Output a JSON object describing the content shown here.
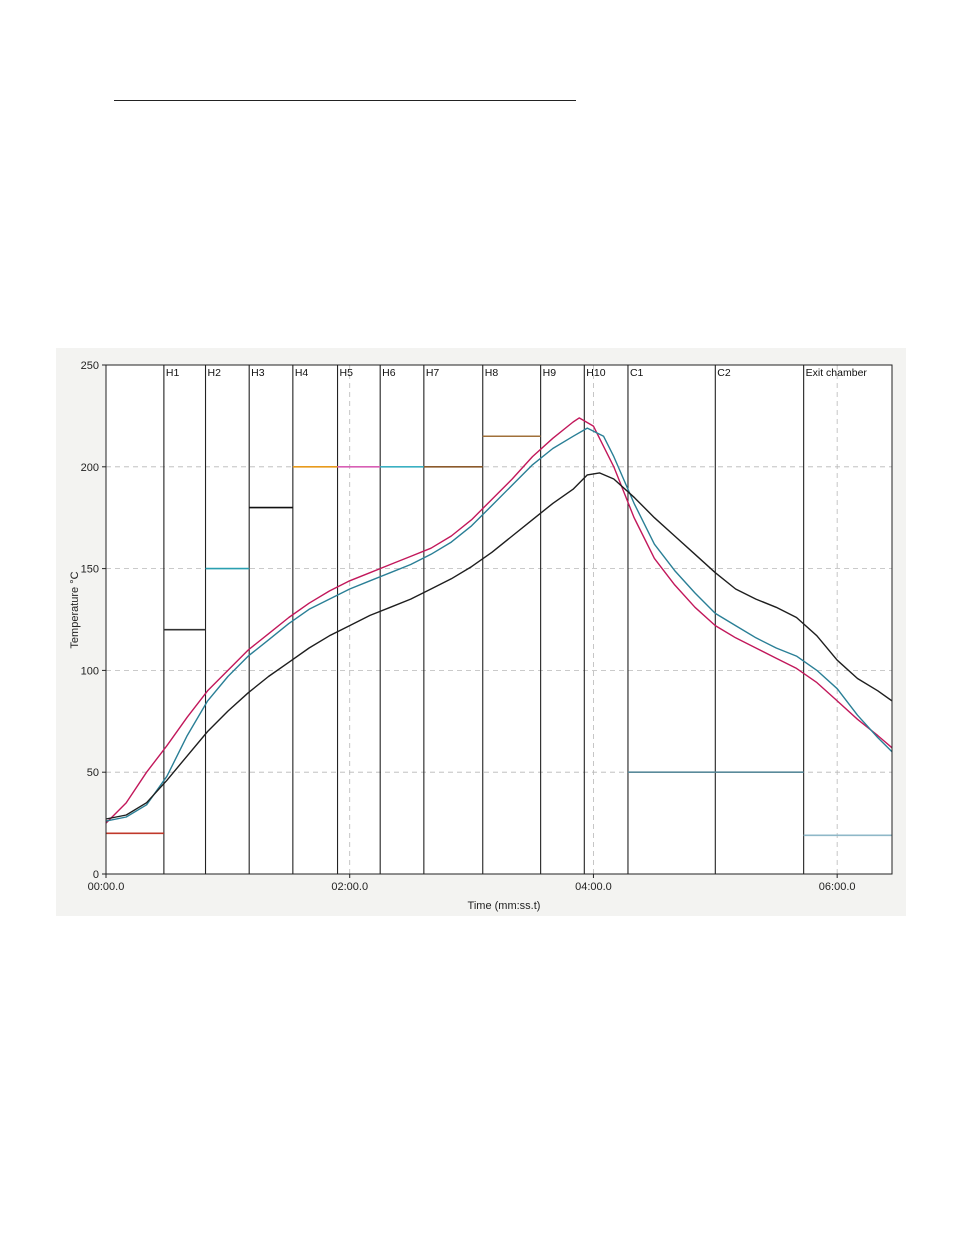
{
  "chart_data": {
    "type": "line",
    "title": "",
    "xlabel": "Time (mm:ss.t)",
    "ylabel": "Temperature °C",
    "xlim": [
      0,
      387
    ],
    "ylim": [
      0,
      250
    ],
    "x_ticks": [
      {
        "value": 0,
        "label": "00:00.0"
      },
      {
        "value": 120,
        "label": "02:00.0"
      },
      {
        "value": 240,
        "label": "04:00.0"
      },
      {
        "value": 360,
        "label": "06:00.0"
      }
    ],
    "y_ticks": [
      0,
      50,
      100,
      150,
      200,
      250
    ],
    "grid": true,
    "zones": [
      {
        "label": "",
        "start": 0,
        "end": 28.5,
        "setpoint": 20,
        "color": "#c0392b"
      },
      {
        "label": "H1",
        "start": 28.5,
        "end": 49,
        "setpoint": 120,
        "color": "#333333"
      },
      {
        "label": "H2",
        "start": 49,
        "end": 70.5,
        "setpoint": 150,
        "color": "#2a9fb0"
      },
      {
        "label": "H3",
        "start": 70.5,
        "end": 92,
        "setpoint": 180,
        "color": "#111111"
      },
      {
        "label": "H4",
        "start": 92,
        "end": 114,
        "setpoint": 200,
        "color": "#e89a1c"
      },
      {
        "label": "H5",
        "start": 114,
        "end": 135,
        "setpoint": 200,
        "color": "#d85fb5"
      },
      {
        "label": "H6",
        "start": 135,
        "end": 156.5,
        "setpoint": 200,
        "color": "#3bb0c2"
      },
      {
        "label": "H7",
        "start": 156.5,
        "end": 185.5,
        "setpoint": 200,
        "color": "#8b5a2b"
      },
      {
        "label": "H8",
        "start": 185.5,
        "end": 214,
        "setpoint": 215,
        "color": "#a0703a"
      },
      {
        "label": "H9",
        "start": 214,
        "end": 235.5,
        "setpoint": null,
        "color": "#333333"
      },
      {
        "label": "H10",
        "start": 235.5,
        "end": 257,
        "setpoint": null,
        "color": "#333333"
      },
      {
        "label": "C1",
        "start": 257,
        "end": 300,
        "setpoint": 50,
        "color": "#5a8a9a"
      },
      {
        "label": "C2",
        "start": 300,
        "end": 343.5,
        "setpoint": 50,
        "color": "#5a8a9a"
      },
      {
        "label": "Exit chamber",
        "start": 343.5,
        "end": 387,
        "setpoint": 19,
        "color": "#8fb8c8"
      }
    ],
    "series": [
      {
        "color": "#c2185b",
        "x": [
          0,
          10,
          20,
          30,
          40,
          50,
          60,
          70,
          80,
          90,
          100,
          110,
          120,
          130,
          140,
          150,
          160,
          170,
          180,
          190,
          200,
          210,
          220,
          230,
          233,
          240,
          250,
          260,
          270,
          280,
          290,
          300,
          310,
          320,
          330,
          340,
          350,
          360,
          370,
          380,
          387
        ],
        "y": [
          25,
          35,
          50,
          63,
          77,
          90,
          100,
          110,
          118,
          126,
          133,
          139,
          144,
          148,
          152,
          156,
          160,
          166,
          174,
          184,
          194,
          205,
          214,
          222,
          224,
          220,
          200,
          175,
          155,
          142,
          131,
          122,
          116,
          111,
          106,
          101,
          94,
          85,
          76,
          68,
          62
        ]
      },
      {
        "color": "#2a7f96",
        "x": [
          0,
          10,
          20,
          30,
          40,
          50,
          60,
          70,
          80,
          90,
          100,
          110,
          120,
          130,
          140,
          150,
          160,
          170,
          180,
          190,
          200,
          210,
          220,
          230,
          237,
          245,
          250,
          260,
          270,
          280,
          290,
          300,
          310,
          320,
          330,
          340,
          350,
          360,
          370,
          380,
          387
        ],
        "y": [
          26,
          28,
          34,
          48,
          68,
          85,
          97,
          107,
          115,
          123,
          130,
          135,
          140,
          144,
          148,
          152,
          157,
          163,
          171,
          181,
          191,
          201,
          209,
          215,
          219,
          215,
          205,
          182,
          162,
          149,
          138,
          128,
          122,
          116,
          111,
          107,
          100,
          91,
          78,
          67,
          60
        ]
      },
      {
        "color": "#1e1e1e",
        "x": [
          0,
          10,
          20,
          30,
          40,
          50,
          60,
          70,
          80,
          90,
          100,
          110,
          120,
          130,
          140,
          150,
          160,
          170,
          180,
          190,
          200,
          210,
          220,
          230,
          237,
          243,
          250,
          260,
          270,
          280,
          290,
          300,
          310,
          320,
          330,
          340,
          350,
          360,
          370,
          380,
          387
        ],
        "y": [
          27,
          29,
          35,
          46,
          58,
          70,
          80,
          89,
          97,
          104,
          111,
          117,
          122,
          127,
          131,
          135,
          140,
          145,
          151,
          158,
          166,
          174,
          182,
          189,
          196,
          197,
          194,
          185,
          175,
          166,
          157,
          148,
          140,
          135,
          131,
          126,
          117,
          105,
          96,
          90,
          85
        ]
      }
    ]
  }
}
